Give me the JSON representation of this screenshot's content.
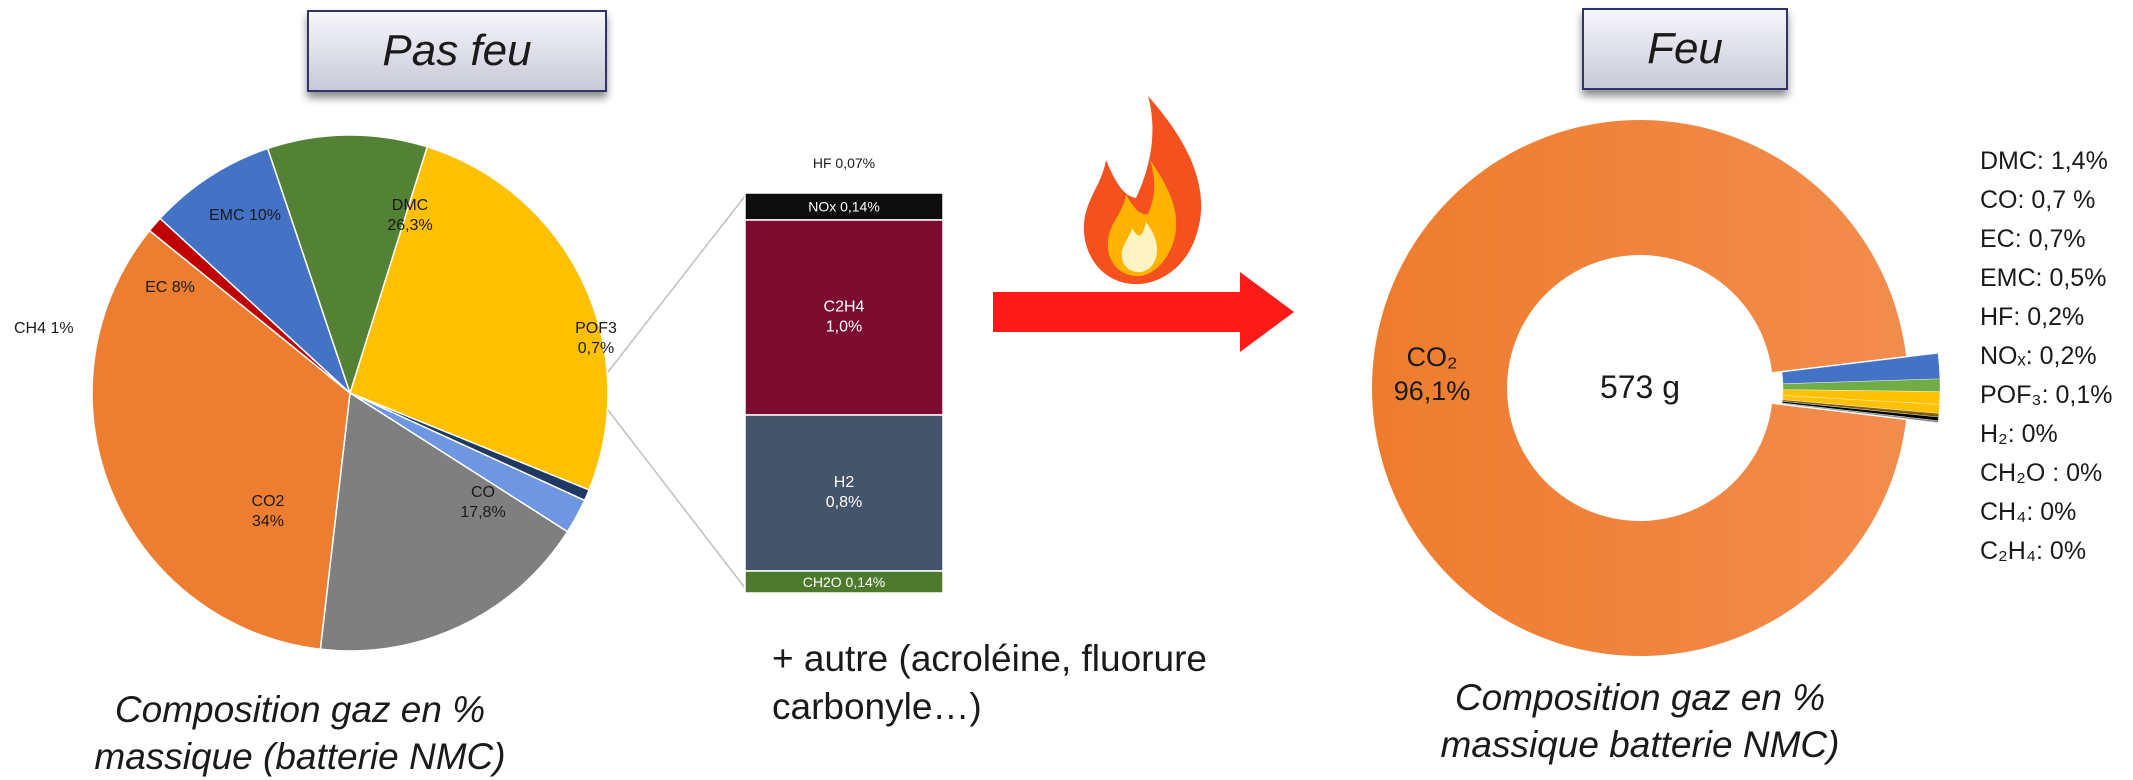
{
  "left_panel": {
    "title": "Pas feu",
    "caption_line1": "Composition gaz en %",
    "caption_line2": "massique (batterie NMC)"
  },
  "middle_panel": {
    "other_line1": "+ autre (acroléine, fluorure",
    "other_line2": "carbonyle…)"
  },
  "right_panel": {
    "title": "Feu",
    "center_label": "573 g",
    "caption_line1": "Composition gaz en %",
    "caption_line2": "massique batterie NMC)",
    "legend": [
      "DMC: 1,4%",
      "CO: 0,7 %",
      "EC: 0,7%",
      "EMC: 0,5%",
      "HF: 0,2%",
      "NOₓ: 0,2%",
      "POF₃: 0,1%",
      "H₂: 0%",
      "CH₂O : 0%",
      "CH₄: 0%",
      "C₂H₄: 0%"
    ]
  },
  "colors": {
    "arrow": "#ff1a1a",
    "flame_outer": "#f4511e",
    "flame_inner": "#ffb300"
  },
  "icons": {
    "flame": "flame-icon",
    "arrow": "right-arrow-icon"
  },
  "chart_data": [
    {
      "type": "pie",
      "title": "Pas feu",
      "slices": [
        {
          "name": "DMC",
          "label_lines": [
            "DMC",
            "26,3%"
          ],
          "value": 26.3,
          "color": "#ffc000"
        },
        {
          "name": "POF3",
          "label_lines": [
            "POF3",
            "0,7%"
          ],
          "value": 0.7,
          "color": "#1f3864"
        },
        {
          "name": "autres",
          "label_lines": [],
          "value": 2.2,
          "color": "#6f96e0"
        },
        {
          "name": "CO",
          "label_lines": [
            "CO",
            "17,8%"
          ],
          "value": 17.8,
          "color": "#7f7f7f"
        },
        {
          "name": "CO2",
          "label_lines": [
            "CO2",
            "34%"
          ],
          "value": 34,
          "color": "#ed7d31"
        },
        {
          "name": "CH4",
          "label_lines": [
            "CH4 1%"
          ],
          "value": 1,
          "color": "#c00000"
        },
        {
          "name": "EC",
          "label_lines": [
            "EC 8%"
          ],
          "value": 8,
          "color": "#4472c4"
        },
        {
          "name": "EMC",
          "label_lines": [
            "EMC 10%"
          ],
          "value": 10,
          "color": "#548235"
        }
      ]
    },
    {
      "type": "bar",
      "stacked": true,
      "segments": [
        {
          "name": "HF",
          "label": "HF 0,07%",
          "value": 0.07,
          "color": "#000000"
        },
        {
          "name": "NOx",
          "label": "NOx 0,14%",
          "value": 0.14,
          "color": "#0d0d0d"
        },
        {
          "name": "C2H4",
          "label_lines": [
            "C2H4",
            "1,0%"
          ],
          "value": 1.0,
          "color": "#7b0c2f"
        },
        {
          "name": "H2",
          "label_lines": [
            "H2",
            "0,8%"
          ],
          "value": 0.8,
          "color": "#44546a"
        },
        {
          "name": "CH2O",
          "label": "CH2O 0,14%",
          "value": 0.14,
          "color": "#4e7a2e"
        }
      ]
    },
    {
      "type": "pie",
      "donut": true,
      "title": "Feu",
      "slices": [
        {
          "name": "CO2",
          "label_lines": [
            "CO₂",
            "96,1%"
          ],
          "value": 96.1,
          "color": "#ed7d31"
        },
        {
          "name": "DMC",
          "value": 1.4,
          "color": "#4472c4"
        },
        {
          "name": "CO",
          "value": 0.7,
          "color": "#70ad47"
        },
        {
          "name": "EC",
          "value": 0.7,
          "color": "#ffc000"
        },
        {
          "name": "EMC",
          "value": 0.5,
          "color": "#ffc000"
        },
        {
          "name": "HF",
          "value": 0.2,
          "color": "#7f6000"
        },
        {
          "name": "NOx",
          "value": 0.2,
          "color": "#000000"
        },
        {
          "name": "POF3",
          "value": 0.1,
          "color": "#7f7f7f"
        }
      ]
    }
  ]
}
